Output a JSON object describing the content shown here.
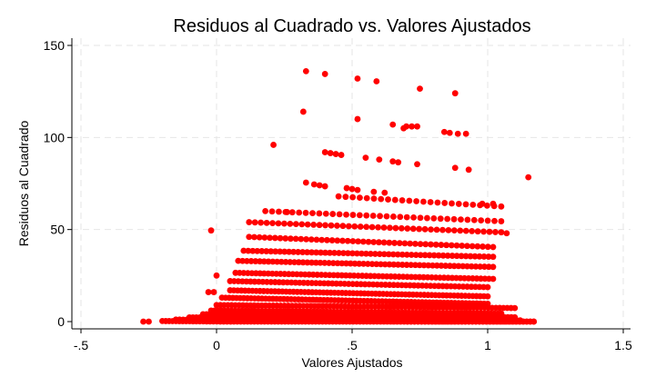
{
  "chart_data": {
    "type": "scatter",
    "title": "Residuos al Cuadrado vs. Valores Ajustados",
    "xlabel": "Valores Ajustados",
    "ylabel": "Residuos al Cuadrado",
    "xlim": [
      -0.5,
      1.5
    ],
    "ylim": [
      0,
      150
    ],
    "x_ticks": [
      {
        "value": -0.5,
        "label": "-.5"
      },
      {
        "value": 0,
        "label": "0"
      },
      {
        "value": 0.5,
        "label": ".5"
      },
      {
        "value": 1,
        "label": "1"
      },
      {
        "value": 1.5,
        "label": "1.5"
      }
    ],
    "y_ticks": [
      {
        "value": 0,
        "label": "0"
      },
      {
        "value": 50,
        "label": "50"
      },
      {
        "value": 100,
        "label": "100"
      },
      {
        "value": 150,
        "label": "150"
      }
    ],
    "grid": true,
    "marker_color": "#ff0000",
    "bands": [
      {
        "y0": 78.4,
        "x0": 1.15,
        "x1": 1.15,
        "n": 1
      },
      {
        "y0": 68,
        "x0": 0.45,
        "x1": 1.05,
        "n": 24
      },
      {
        "y0": 60,
        "x0": 0.18,
        "x1": 1.05,
        "n": 36
      },
      {
        "y0": 54,
        "x0": 0.12,
        "x1": 1.05,
        "n": 44
      },
      {
        "y0": 46,
        "x0": 0.12,
        "x1": 1.02,
        "n": 48
      },
      {
        "y0": 38.5,
        "x0": 0.1,
        "x1": 1.02,
        "n": 56
      },
      {
        "y0": 33,
        "x0": 0.08,
        "x1": 1.02,
        "n": 60
      },
      {
        "y0": 26.5,
        "x0": 0.07,
        "x1": 1.02,
        "n": 64
      },
      {
        "y0": 22,
        "x0": 0.05,
        "x1": 1.0,
        "n": 64
      },
      {
        "y0": 17,
        "x0": 0.05,
        "x1": 1.0,
        "n": 70
      },
      {
        "y0": 13,
        "x0": 0.02,
        "x1": 1.0,
        "n": 74
      },
      {
        "y0": 9,
        "x0": 0.0,
        "x1": 1.1,
        "n": 80
      },
      {
        "y0": 6,
        "x0": -0.02,
        "x1": 1.05,
        "n": 86
      },
      {
        "y0": 4,
        "x0": -0.05,
        "x1": 1.1,
        "n": 90
      },
      {
        "y0": 2.3,
        "x0": -0.1,
        "x1": 1.12,
        "n": 96
      },
      {
        "y0": 1.1,
        "x0": -0.15,
        "x1": 1.17,
        "n": 100
      },
      {
        "y0": 0.3,
        "x0": -0.2,
        "x1": 1.17,
        "n": 110
      }
    ],
    "points": [
      [
        -0.27,
        0
      ],
      [
        -0.25,
        0
      ],
      [
        -0.02,
        49.5
      ],
      [
        0.0,
        25
      ],
      [
        -0.03,
        16
      ],
      [
        -0.01,
        16
      ],
      [
        0.21,
        96
      ],
      [
        0.32,
        114
      ],
      [
        0.33,
        136
      ],
      [
        0.4,
        134.5
      ],
      [
        0.52,
        132
      ],
      [
        0.59,
        130.5
      ],
      [
        0.52,
        110
      ],
      [
        0.75,
        126.5
      ],
      [
        0.88,
        124
      ],
      [
        0.65,
        107
      ],
      [
        0.69,
        105
      ],
      [
        0.7,
        106
      ],
      [
        0.72,
        106
      ],
      [
        0.74,
        106
      ],
      [
        0.84,
        103
      ],
      [
        0.86,
        102.5
      ],
      [
        0.89,
        102
      ],
      [
        0.92,
        102
      ],
      [
        0.4,
        92
      ],
      [
        0.42,
        91.5
      ],
      [
        0.44,
        91
      ],
      [
        0.46,
        90.5
      ],
      [
        0.55,
        89
      ],
      [
        0.6,
        88
      ],
      [
        0.65,
        87
      ],
      [
        0.67,
        86.5
      ],
      [
        0.74,
        85.5
      ],
      [
        0.88,
        83.5
      ],
      [
        0.93,
        82.5
      ],
      [
        0.33,
        75.5
      ],
      [
        0.36,
        74.5
      ],
      [
        0.38,
        74
      ],
      [
        0.4,
        73.5
      ],
      [
        0.48,
        72.5
      ],
      [
        0.5,
        72
      ],
      [
        0.52,
        71.5
      ],
      [
        0.58,
        70.5
      ],
      [
        0.62,
        70
      ],
      [
        0.98,
        64
      ],
      [
        1.02,
        64
      ],
      [
        0.26,
        59.5
      ],
      [
        1.07,
        48
      ]
    ]
  }
}
